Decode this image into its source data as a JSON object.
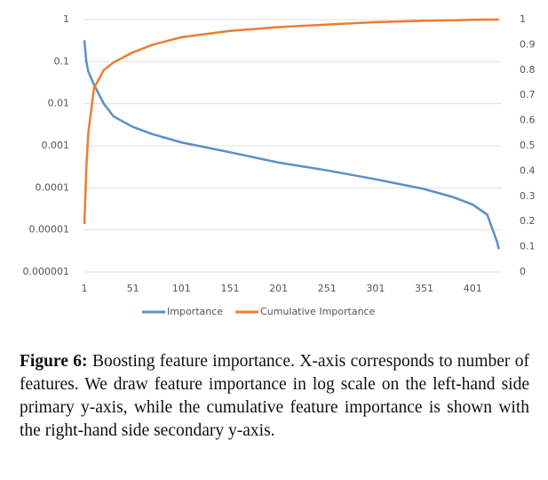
{
  "chart_data": {
    "type": "line",
    "x": [
      1,
      3,
      5,
      11,
      21,
      31,
      51,
      71,
      101,
      151,
      201,
      251,
      301,
      351,
      381,
      401,
      416,
      421,
      426,
      428
    ],
    "series": [
      {
        "name": "Importance",
        "color": "#5b8fc7",
        "values": [
          0.32,
          0.1,
          0.058,
          0.028,
          0.01,
          0.005,
          0.0028,
          0.0019,
          0.0012,
          0.0007,
          0.0004,
          0.00026,
          0.00016,
          9.4e-05,
          6e-05,
          4e-05,
          2.3e-05,
          1.1e-05,
          5.3e-06,
          3.5e-06
        ]
      },
      {
        "name": "Cumulative Importance",
        "color": "#ed7d31",
        "axis": "y2",
        "values": [
          0.19,
          0.41,
          0.55,
          0.73,
          0.8,
          0.83,
          0.87,
          0.9,
          0.93,
          0.955,
          0.97,
          0.98,
          0.99,
          0.995,
          0.997,
          0.999,
          1,
          1,
          1,
          1
        ]
      }
    ],
    "xlim": [
      1,
      431
    ],
    "xticks": [
      1,
      51,
      101,
      151,
      201,
      251,
      301,
      351,
      401
    ],
    "ylim": [
      1e-06,
      1
    ],
    "yticks": [
      1e-06,
      1e-05,
      0.0001,
      0.001,
      0.01,
      0.1,
      1
    ],
    "ylog": true,
    "y2lim": [
      0,
      1
    ],
    "y2ticks": [
      0,
      0.1,
      0.2,
      0.3,
      0.4,
      0.5,
      0.6,
      0.7,
      0.8,
      0.9,
      1
    ],
    "grid": true,
    "legend": "bottom"
  },
  "caption": {
    "label": "Figure 6:",
    "text": "Boosting feature importance. X-axis corresponds to number of features. We draw feature importance in log scale on the left-hand side primary y-axis, while the cumulative feature importance is shown with the right-hand side secondary y-axis."
  }
}
